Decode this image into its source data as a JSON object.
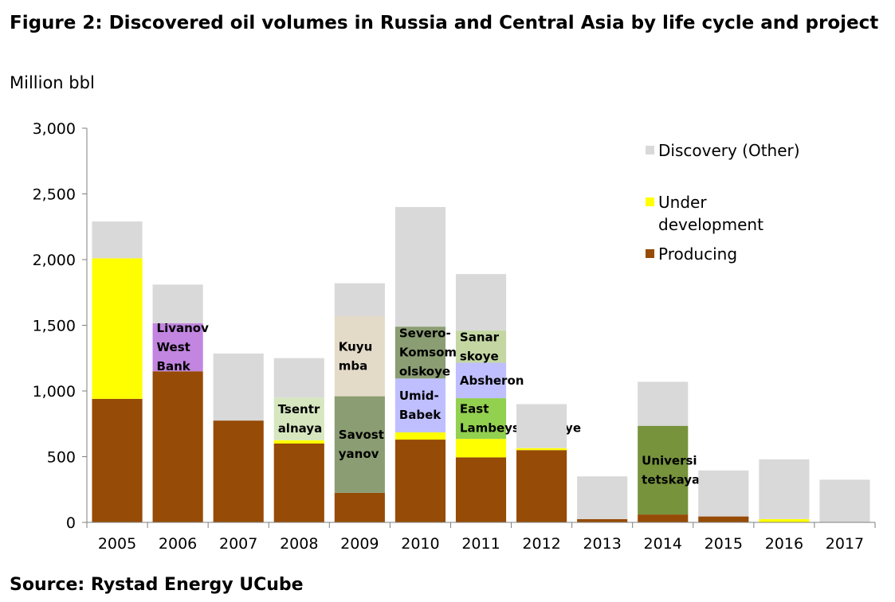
{
  "title": "Figure 2: Discovered oil volumes in Russia and Central Asia by life cycle and project",
  "unit_label": "Million bbl",
  "source": "Source: Rystad Energy UCube",
  "colors": {
    "discovery": "#d9d9d9",
    "under_development": "#ffff00",
    "producing": "#964b06"
  },
  "chart_data": {
    "type": "bar",
    "stacked": true,
    "categories": [
      "2005",
      "2006",
      "2007",
      "2008",
      "2009",
      "2010",
      "2011",
      "2012",
      "2013",
      "2014",
      "2015",
      "2016",
      "2017"
    ],
    "ylim": [
      0,
      3000
    ],
    "yticks": [
      "0",
      "500",
      "1,000",
      "1,500",
      "2,000",
      "2,500",
      "3,000"
    ],
    "ytick_values": [
      0,
      500,
      1000,
      1500,
      2000,
      2500,
      3000
    ],
    "grid": false,
    "legend_position": "top-right",
    "legend": [
      {
        "label": "Discovery (Other)",
        "color": "#d9d9d9"
      },
      {
        "label_lines": [
          "Under",
          "development"
        ],
        "color": "#ffff00"
      },
      {
        "label": "Producing",
        "color": "#964b06"
      }
    ],
    "bars": [
      {
        "category": "2005",
        "segments": [
          {
            "series": "Producing",
            "value": 940,
            "color": "#964b06"
          },
          {
            "series": "Under development",
            "value": 1070,
            "color": "#ffff00"
          },
          {
            "series": "Discovery (Other)",
            "value": 280,
            "color": "#d9d9d9"
          }
        ]
      },
      {
        "category": "2006",
        "segments": [
          {
            "series": "Producing",
            "value": 1150,
            "color": "#964b06"
          },
          {
            "series": "Livanov West Bank",
            "value": 365,
            "color": "#c285e0",
            "label_lines": [
              "Livanov",
              "West",
              "Bank"
            ]
          },
          {
            "series": "Discovery (Other)",
            "value": 295,
            "color": "#d9d9d9"
          }
        ]
      },
      {
        "category": "2007",
        "segments": [
          {
            "series": "Producing",
            "value": 775,
            "color": "#964b06"
          },
          {
            "series": "Discovery (Other)",
            "value": 510,
            "color": "#d9d9d9"
          }
        ]
      },
      {
        "category": "2008",
        "segments": [
          {
            "series": "Producing",
            "value": 600,
            "color": "#964b06"
          },
          {
            "series": "Under development",
            "value": 25,
            "color": "#ffff00"
          },
          {
            "series": "Tsentralnaya",
            "value": 325,
            "color": "#d6e6bf",
            "label_lines": [
              "Tsentr",
              "alnaya"
            ]
          },
          {
            "series": "Discovery (Other)",
            "value": 300,
            "color": "#d9d9d9"
          }
        ]
      },
      {
        "category": "2009",
        "segments": [
          {
            "series": "Producing",
            "value": 225,
            "color": "#964b06"
          },
          {
            "series": "Savostyanov",
            "value": 735,
            "color": "#8b9d72",
            "label_lines": [
              "Savost",
              "yanov"
            ]
          },
          {
            "series": "Kuyumba",
            "value": 610,
            "color": "#e3dac8",
            "label_lines": [
              "Kuyu",
              "mba"
            ]
          },
          {
            "series": "Discovery (Other)",
            "value": 250,
            "color": "#d9d9d9"
          }
        ]
      },
      {
        "category": "2010",
        "segments": [
          {
            "series": "Producing",
            "value": 630,
            "color": "#964b06"
          },
          {
            "series": "Under development",
            "value": 55,
            "color": "#ffff00"
          },
          {
            "series": "Umid-Babek",
            "value": 410,
            "color": "#bfbfff",
            "label_lines": [
              "Umid-",
              "Babek"
            ]
          },
          {
            "series": "Severo-Komsomolskoye",
            "value": 395,
            "color": "#8b9d72",
            "label_lines": [
              "Severo-",
              "Komsom",
              "olskoye"
            ]
          },
          {
            "series": "Discovery (Other)",
            "value": 910,
            "color": "#d9d9d9"
          }
        ]
      },
      {
        "category": "2011",
        "segments": [
          {
            "series": "Producing",
            "value": 495,
            "color": "#964b06"
          },
          {
            "series": "Under development",
            "value": 140,
            "color": "#ffff00"
          },
          {
            "series": "East Lambeyshorskoye",
            "value": 310,
            "color": "#92d050",
            "label_lines": [
              "East",
              "Lambeyshorskoye"
            ]
          },
          {
            "series": "Absheron",
            "value": 270,
            "color": "#bfbfff",
            "label_lines": [
              "Absheron"
            ]
          },
          {
            "series": "Sanarskoye",
            "value": 245,
            "color": "#c4d7a3",
            "label_lines": [
              "Sanar",
              "skoye"
            ]
          },
          {
            "series": "Discovery (Other)",
            "value": 430,
            "color": "#d9d9d9"
          }
        ]
      },
      {
        "category": "2012",
        "segments": [
          {
            "series": "Producing",
            "value": 550,
            "color": "#964b06"
          },
          {
            "series": "Under development",
            "value": 15,
            "color": "#ffff00"
          },
          {
            "series": "Discovery (Other)",
            "value": 335,
            "color": "#d9d9d9"
          }
        ]
      },
      {
        "category": "2013",
        "segments": [
          {
            "series": "Producing",
            "value": 25,
            "color": "#964b06"
          },
          {
            "series": "Discovery (Other)",
            "value": 325,
            "color": "#d9d9d9"
          }
        ]
      },
      {
        "category": "2014",
        "segments": [
          {
            "series": "Producing",
            "value": 60,
            "color": "#964b06"
          },
          {
            "series": "Universitetskaya",
            "value": 675,
            "color": "#77933c",
            "label_lines": [
              "Universi",
              "tetskaya"
            ]
          },
          {
            "series": "Discovery (Other)",
            "value": 335,
            "color": "#d9d9d9"
          }
        ]
      },
      {
        "category": "2015",
        "segments": [
          {
            "series": "Producing",
            "value": 45,
            "color": "#964b06"
          },
          {
            "series": "Discovery (Other)",
            "value": 350,
            "color": "#d9d9d9"
          }
        ]
      },
      {
        "category": "2016",
        "segments": [
          {
            "series": "Under development",
            "value": 25,
            "color": "#ffff00"
          },
          {
            "series": "Discovery (Other)",
            "value": 455,
            "color": "#d9d9d9"
          }
        ]
      },
      {
        "category": "2017",
        "segments": [
          {
            "series": "Discovery (Other)",
            "value": 325,
            "color": "#d9d9d9"
          }
        ]
      }
    ]
  }
}
